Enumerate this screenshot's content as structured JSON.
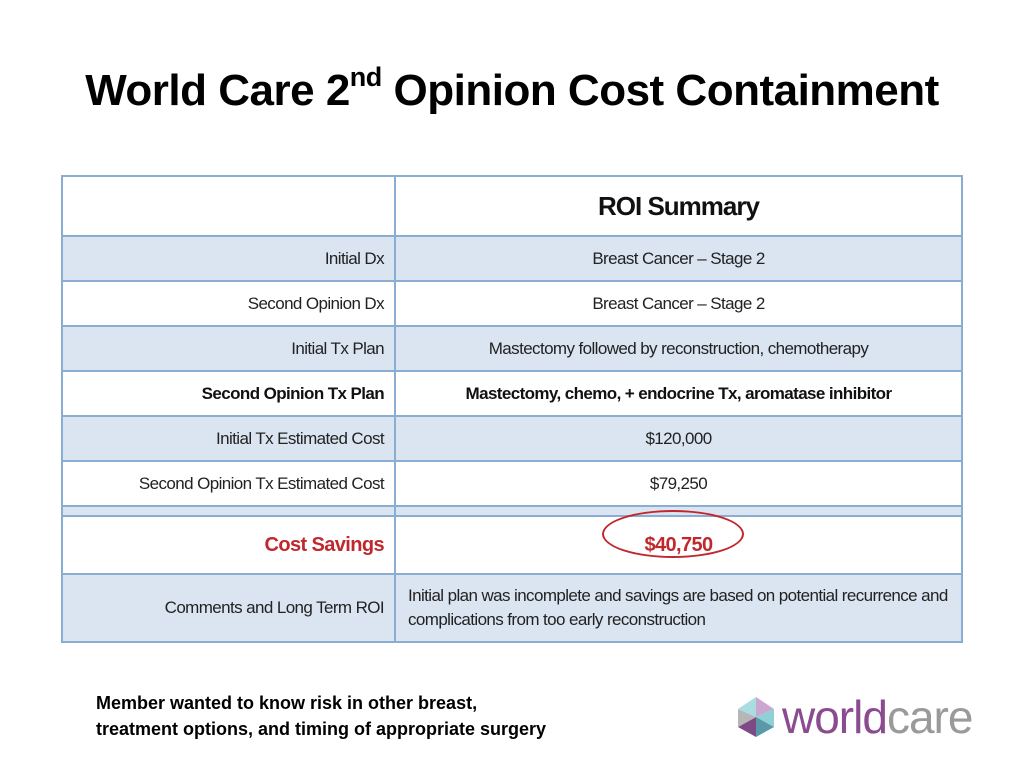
{
  "title": {
    "part1": "World Care 2",
    "superscript": "nd",
    "part2": " Opinion Cost Containment"
  },
  "table": {
    "header": "ROI Summary",
    "rows": [
      {
        "label": "Initial Dx",
        "value": "Breast Cancer – Stage 2"
      },
      {
        "label": "Second Opinion Dx",
        "value": "Breast Cancer – Stage 2"
      },
      {
        "label": "Initial Tx Plan",
        "value": "Mastectomy followed by reconstruction, chemotherapy"
      },
      {
        "label": "Second Opinion Tx Plan",
        "value": "Mastectomy, chemo, +  endocrine Tx, aromatase inhibitor"
      },
      {
        "label": "Initial Tx Estimated Cost",
        "value": "$120,000"
      },
      {
        "label": "Second Opinion Tx Estimated Cost",
        "value": "$79,250"
      }
    ],
    "savings": {
      "label": "Cost Savings",
      "value": "$40,750"
    },
    "comments": {
      "label": "Comments and Long Term ROI",
      "value": "Initial plan was incomplete and savings are based on potential recurrence and complications from too early reconstruction"
    }
  },
  "footer_note": "Member  wanted to know risk in other breast,\ntreatment options, and timing of appropriate surgery",
  "logo": {
    "icon": "worldcare-logo-icon",
    "text_world": "world",
    "text_care": "care",
    "colors": {
      "world": "#8a4b8f",
      "care": "#9a9a9a"
    }
  },
  "colors": {
    "table_border": "#8aaed2",
    "row_shade": "#dbe5f1",
    "savings": "#c0282d"
  }
}
